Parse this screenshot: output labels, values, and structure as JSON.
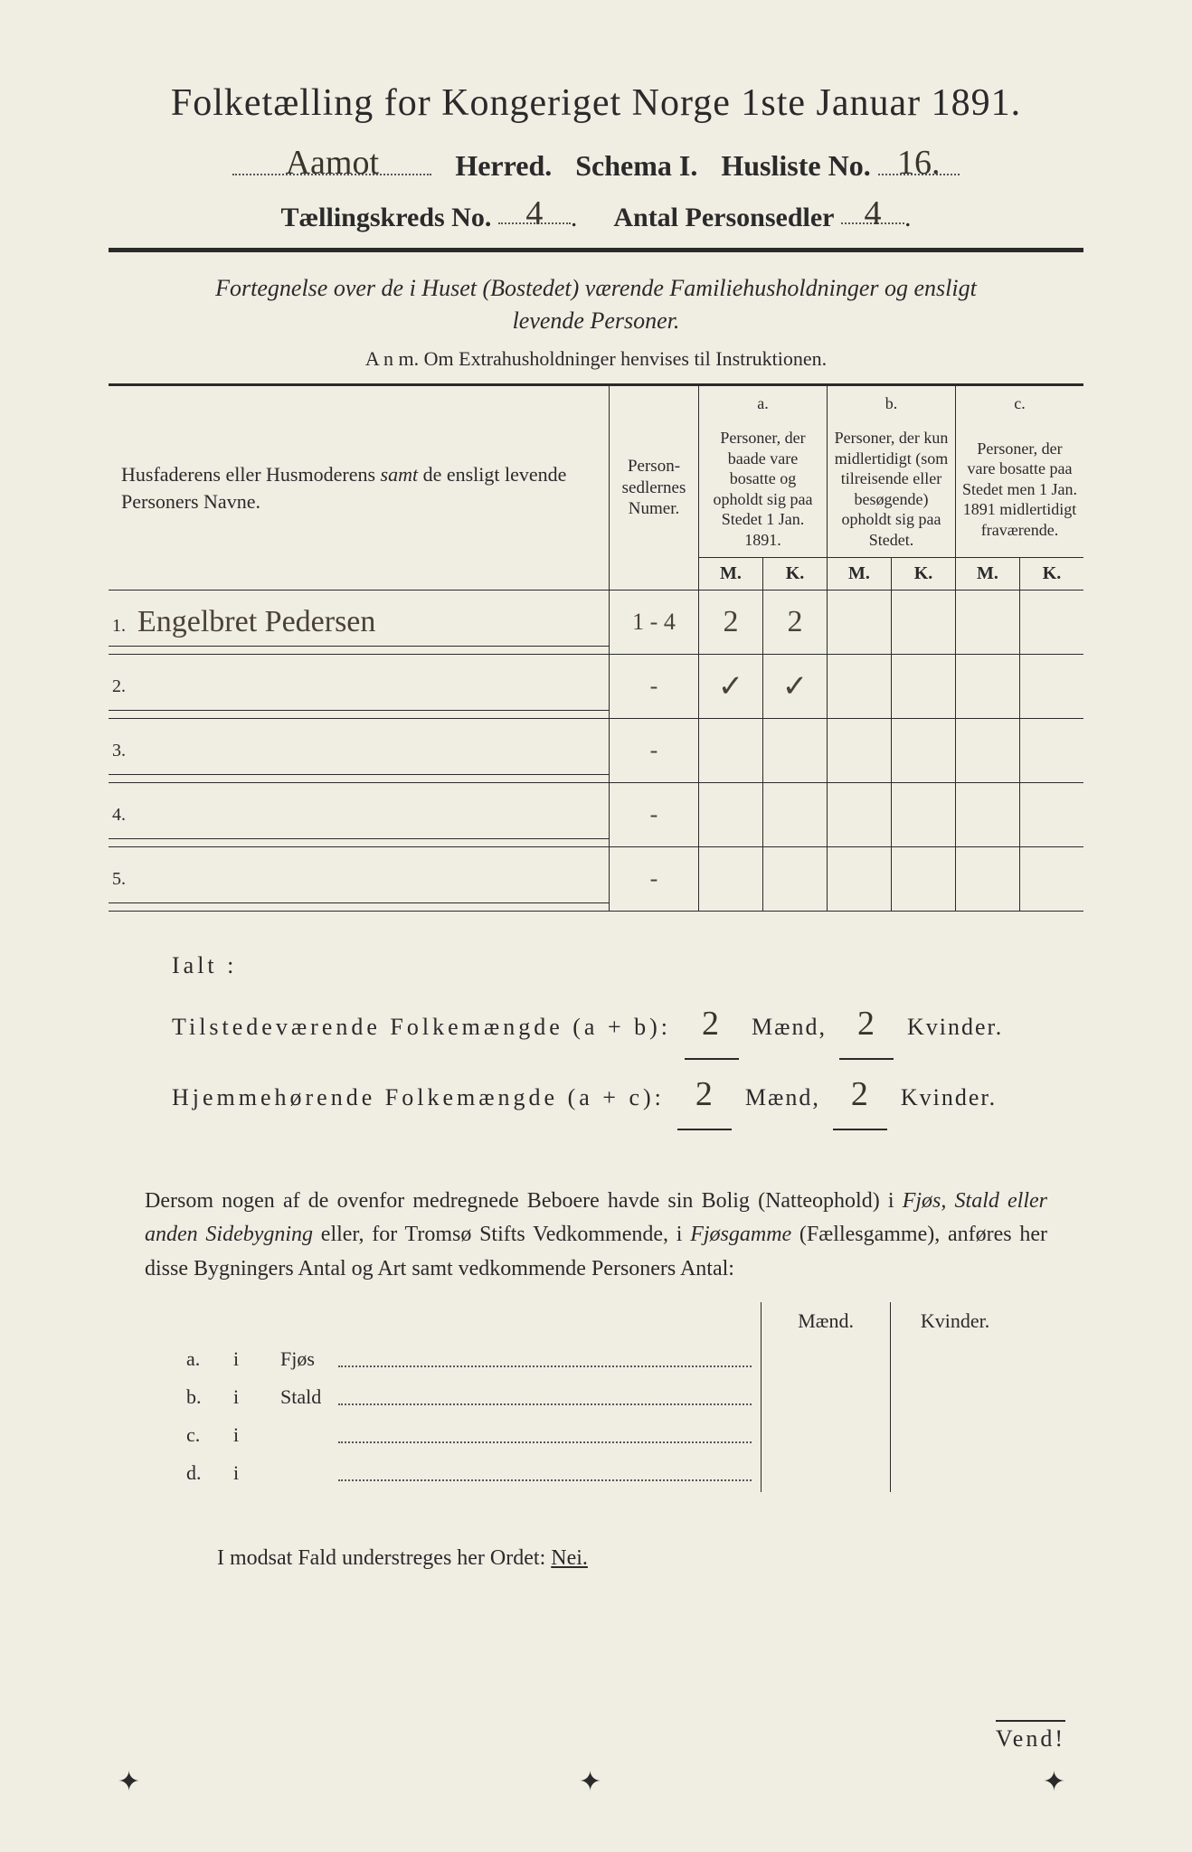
{
  "colors": {
    "paper": "#f0ede3",
    "ink": "#2a2a2a",
    "handwriting": "#4a4238",
    "dots": "#555555"
  },
  "typography": {
    "title_fontsize": 42,
    "line2_fontsize": 32,
    "line3_fontsize": 30,
    "subtitle_fontsize": 26,
    "anm_fontsize": 22,
    "table_fontsize": 20,
    "totals_fontsize": 26,
    "para_fontsize": 24,
    "handwriting_fontsize": 34
  },
  "header": {
    "title": "Folketælling for Kongeriget Norge 1ste Januar 1891.",
    "herred_handwritten": "Aamot",
    "herred_label": "Herred.",
    "schema_label": "Schema I.",
    "husliste_label": "Husliste No.",
    "husliste_no": "16.",
    "kreds_label": "Tællingskreds No.",
    "kreds_no": "4",
    "personsedler_label": "Antal Personsedler",
    "personsedler_no": "4"
  },
  "subtitle": {
    "line1": "Fortegnelse over de i Huset (Bostedet) værende Familiehusholdninger og ensligt",
    "line2": "levende Personer."
  },
  "anm": "A n m.  Om Extrahusholdninger henvises til Instruktionen.",
  "table": {
    "col1_header": "Husfaderens eller Husmoderens samt de ensligt levende Personers Navne.",
    "col2_header": "Personsedlernes Numer.",
    "col_a_label": "a.",
    "col_a_text": "Personer, der baade vare bosatte og opholdt sig paa Stedet 1 Jan. 1891.",
    "col_b_label": "b.",
    "col_b_text": "Personer, der kun midlertidigt (som tilreisende eller besøgende) opholdt sig paa Stedet.",
    "col_c_label": "c.",
    "col_c_text": "Personer, der vare bosatte paa Stedet men 1 Jan. 1891 midlertidigt fraværende.",
    "m_label": "M.",
    "k_label": "K.",
    "row_labels": [
      "1.",
      "2.",
      "3.",
      "4.",
      "5."
    ],
    "rows": [
      {
        "name": "Engelbret Pedersen",
        "numer": "1 - 4",
        "a_m": "2",
        "a_k": "2",
        "b_m": "",
        "b_k": "",
        "c_m": "",
        "c_k": ""
      },
      {
        "name": "",
        "numer": "-",
        "a_m": "✓",
        "a_k": "✓",
        "b_m": "",
        "b_k": "",
        "c_m": "",
        "c_k": ""
      },
      {
        "name": "",
        "numer": "-",
        "a_m": "",
        "a_k": "",
        "b_m": "",
        "b_k": "",
        "c_m": "",
        "c_k": ""
      },
      {
        "name": "",
        "numer": "-",
        "a_m": "",
        "a_k": "",
        "b_m": "",
        "b_k": "",
        "c_m": "",
        "c_k": ""
      },
      {
        "name": "",
        "numer": "-",
        "a_m": "",
        "a_k": "",
        "b_m": "",
        "b_k": "",
        "c_m": "",
        "c_k": ""
      }
    ]
  },
  "totals": {
    "ialt": "Ialt :",
    "line1_label": "Tilstedeværende Folkemængde (a + b):",
    "line2_label": "Hjemmehørende Folkemængde (a + c):",
    "maend_label": "Mænd,",
    "kvinder_label": "Kvinder.",
    "line1_m": "2",
    "line1_k": "2",
    "line2_m": "2",
    "line2_k": "2"
  },
  "paragraph": "Dersom nogen af de ovenfor medregnede Beboere havde sin Bolig (Natteophold) i Fjøs, Stald eller anden Sidebygning eller, for Tromsø Stifts Vedkommende, i Fjøsgamme (Fællesgamme), anføres her disse Bygningers Antal og Art samt vedkommende Personers Antal:",
  "sidetable": {
    "maend": "Mænd.",
    "kvinder": "Kvinder.",
    "rows": [
      {
        "letter": "a.",
        "i": "i",
        "label": "Fjøs"
      },
      {
        "letter": "b.",
        "i": "i",
        "label": "Stald"
      },
      {
        "letter": "c.",
        "i": "i",
        "label": ""
      },
      {
        "letter": "d.",
        "i": "i",
        "label": ""
      }
    ]
  },
  "nei_line": {
    "text": "I modsat Fald understreges her Ordet:",
    "nei": "Nei."
  },
  "vend": "Vend!"
}
